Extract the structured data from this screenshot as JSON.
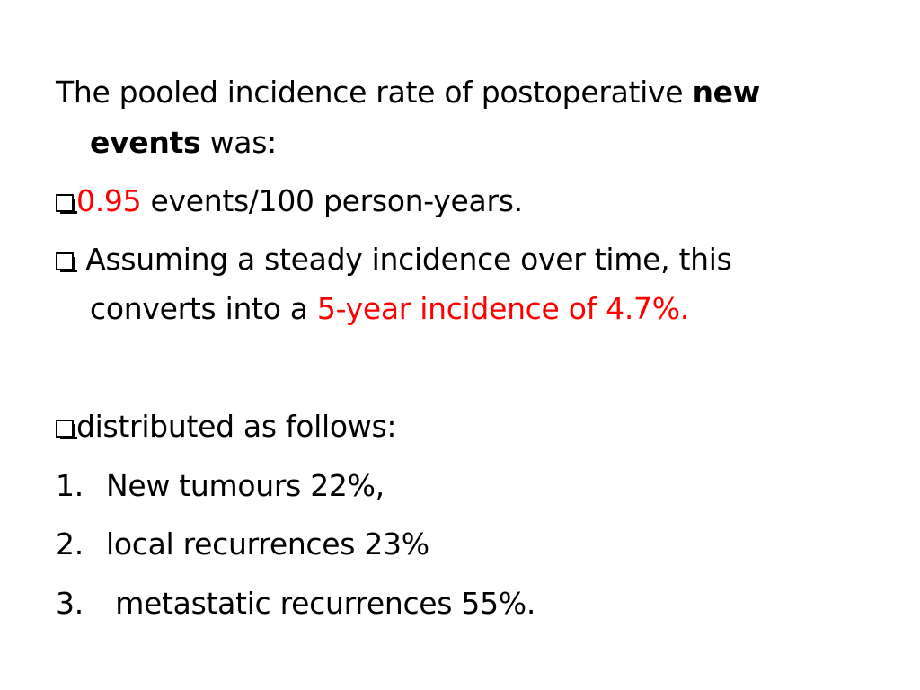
{
  "intro": {
    "text_before": "The pooled incidence rate of postoperative ",
    "bold_1": "new",
    "bold_2": "events",
    "text_after": " was:"
  },
  "bullets": [
    {
      "highlight": "0.95",
      "text": " events/100 person-years."
    },
    {
      "text_1": " Assuming a steady incidence over time, this",
      "text_2": "converts into a ",
      "highlight": "5-year incidence of 4.7%."
    },
    {
      "text": "distributed as follows:"
    }
  ],
  "list": [
    {
      "number": "1.",
      "text": "New tumours 22%,"
    },
    {
      "number": "2.",
      "text": "local recurrences 23%"
    },
    {
      "number": "3.",
      "text": " metastatic recurrences 55%."
    }
  ],
  "colors": {
    "highlight": "#ff0000",
    "text": "#000000",
    "background": "#ffffff"
  },
  "icons": {
    "bullet": "checkbox-icon"
  }
}
